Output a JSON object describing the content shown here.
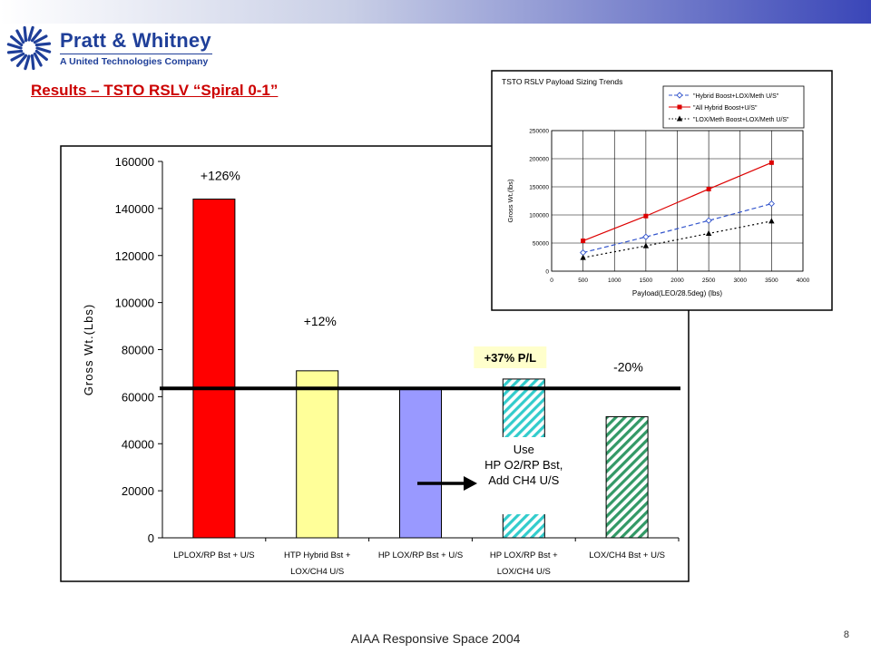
{
  "header": {
    "brand_name": "Pratt & Whitney",
    "brand_tagline": "A United Technologies Company",
    "brand_color": "#1f3f99",
    "logo_icon": "pw-eagle-logo-icon"
  },
  "slide": {
    "title": "Results – TSTO RSLV “Spiral 0-1”",
    "footer": "AIAA Responsive Space 2004",
    "page_number": "8"
  },
  "chart_data": [
    {
      "type": "bar",
      "ylabel": "Gross Wt.(Lbs)",
      "ylim": [
        0,
        160000
      ],
      "yticks": [
        "0",
        "20000",
        "40000",
        "60000",
        "80000",
        "100000",
        "120000",
        "140000",
        "160000"
      ],
      "categories": [
        [
          "LPLOX/RP Bst + U/S"
        ],
        [
          "HTP Hybrid Bst +",
          "LOX/CH4 U/S"
        ],
        [
          "HP LOX/RP Bst + U/S"
        ],
        [
          "HP LOX/RP Bst +",
          "LOX/CH4 U/S"
        ],
        [
          "LOX/CH4 Bst + U/S"
        ]
      ],
      "values": [
        144000,
        71000,
        63500,
        67500,
        51500
      ],
      "bar_fills": [
        "solid",
        "solid",
        "solid",
        "hatch",
        "hatch"
      ],
      "bar_colors": [
        "#ff0000",
        "#ffff99",
        "#9999ff",
        "#33cccc",
        "#339966"
      ],
      "annotations": {
        "bar_labels": [
          "+126%",
          "+12%",
          "",
          "",
          "-20%"
        ],
        "payload_label": "+37% P/L",
        "note_lines": [
          "Use",
          "HP O2/RP Bst,",
          "Add CH4 U/S"
        ]
      },
      "reference_line": 63500,
      "grid": false,
      "legend": "none"
    },
    {
      "type": "line",
      "title": "TSTO RSLV Payload Sizing Trends",
      "xlabel": "Payload(LEO/28.5deg) (lbs)",
      "ylabel": "Gross Wt.(lbs)",
      "xlim": [
        0,
        4000
      ],
      "ylim": [
        0,
        250000
      ],
      "xticks": [
        "0",
        "500",
        "1000",
        "1500",
        "2000",
        "2500",
        "3000",
        "3500",
        "4000"
      ],
      "yticks": [
        "0",
        "50000",
        "100000",
        "150000",
        "200000",
        "250000"
      ],
      "x": [
        500,
        1500,
        2500,
        3500
      ],
      "series": [
        {
          "name": "\"Hybrid Boost+LOX/Meth U/S\"",
          "values": [
            33000,
            61000,
            90000,
            120000
          ],
          "color": "#3355cc",
          "marker": "diamond",
          "dash": "dashed"
        },
        {
          "name": "\"All Hybrid Boost+U/S\"",
          "values": [
            54000,
            98000,
            146000,
            193000
          ],
          "color": "#dd0000",
          "marker": "square",
          "dash": "solid"
        },
        {
          "name": "\"LOX/Meth Boost+LOX/Meth U/S\"",
          "values": [
            24000,
            45000,
            67000,
            89000
          ],
          "color": "#000000",
          "marker": "triangle",
          "dash": "dotted"
        }
      ],
      "grid": true,
      "legend": "top"
    }
  ]
}
